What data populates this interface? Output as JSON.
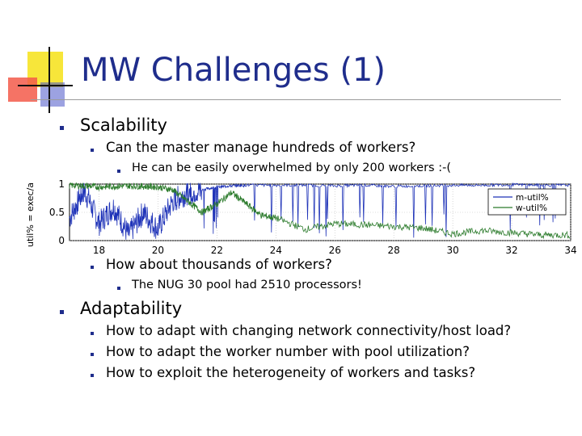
{
  "slide": {
    "title": "MW Challenges (1)",
    "items": [
      {
        "text": "Scalability",
        "level": 1
      },
      {
        "text": "Can the master manage hundreds of workers?",
        "level": 2
      },
      {
        "text": "He can be easily overwhelmed by only 200 workers :-(",
        "level": 3
      },
      {
        "text": "How about thousands of workers?",
        "level": 2
      },
      {
        "text": "The NUG 30 pool had 2510 processors!",
        "level": 3
      },
      {
        "text": "Adaptability",
        "level": 1
      },
      {
        "text": "How to adapt with changing network connectivity/host load?",
        "level": 2
      },
      {
        "text": "How to adapt the worker number with pool utilization?",
        "level": 2
      },
      {
        "text": "How to exploit the heterogeneity of workers and tasks?",
        "level": 2
      }
    ]
  },
  "colors": {
    "title": "#1f2d8c",
    "bullet": "#1f2d8c",
    "m_util": "#1f33b8",
    "w_util": "#2a7a2a"
  },
  "chart_data": {
    "type": "line",
    "ylabel": "util% = exec/a",
    "xlim": [
      17,
      34
    ],
    "ylim": [
      0,
      1
    ],
    "xticks": [
      "18",
      "20",
      "22",
      "24",
      "26",
      "28",
      "30",
      "32",
      "34"
    ],
    "xtick_values": [
      18,
      20,
      22,
      24,
      26,
      28,
      30,
      32,
      34
    ],
    "yticks": [
      "0",
      "0.5",
      "1"
    ],
    "ytick_values": [
      0,
      0.5,
      1
    ],
    "legend": "right",
    "grid": true,
    "series": [
      {
        "name": "m-util%",
        "x": [
          17,
          17.5,
          18,
          18.5,
          19,
          19.5,
          20,
          20.5,
          21,
          21.5,
          22,
          22.5,
          23,
          24,
          25,
          26,
          27,
          28,
          29,
          30,
          31,
          32,
          33,
          34
        ],
        "values": [
          0.4,
          0.9,
          0.3,
          0.6,
          0.1,
          0.5,
          0.2,
          0.7,
          0.85,
          0.9,
          0.95,
          0.97,
          0.98,
          0.98,
          0.98,
          0.97,
          0.98,
          0.96,
          0.97,
          0.98,
          0.98,
          0.99,
          0.98,
          0.98
        ]
      },
      {
        "name": "w-util%",
        "x": [
          17,
          17.5,
          18,
          18.5,
          19,
          19.5,
          20,
          20.5,
          21,
          21.5,
          22,
          22.5,
          23,
          23.5,
          24,
          25,
          26,
          27,
          28,
          29,
          30,
          31,
          32,
          33,
          34
        ],
        "values": [
          0.98,
          0.97,
          0.95,
          0.96,
          0.97,
          0.96,
          0.95,
          0.9,
          0.7,
          0.5,
          0.65,
          0.85,
          0.65,
          0.45,
          0.4,
          0.2,
          0.3,
          0.28,
          0.25,
          0.22,
          0.12,
          0.18,
          0.14,
          0.1,
          0.1
        ]
      }
    ]
  }
}
